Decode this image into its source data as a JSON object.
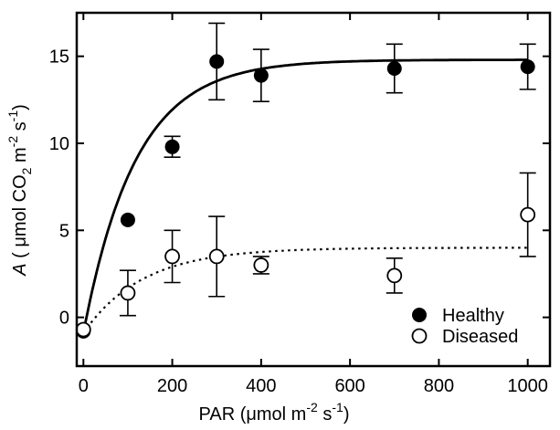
{
  "chart_data": {
    "type": "scatter",
    "xlabel": {
      "base": "PAR (",
      "mu": "μ",
      "mid": "mol m",
      "sup1": "-2",
      "mid2": "  s",
      "sup2": "-1",
      "end": ")"
    },
    "ylabel": {
      "var": "A",
      "open": "  (  ",
      "mu": "μ",
      "unit1": "mol CO",
      "sub": "2",
      "unit2": " m",
      "sup1": "-2",
      "unit3": "  s",
      "sup2": "-1",
      "close": ")"
    },
    "xlim": [
      -15,
      1050
    ],
    "ylim": [
      -2.8,
      17.5
    ],
    "xticks": [
      0,
      200,
      400,
      600,
      800,
      1000
    ],
    "xtick_labels": [
      "0",
      "200",
      "400",
      "600",
      "800",
      "1000"
    ],
    "yticks": [
      0,
      5,
      10,
      15
    ],
    "ytick_labels": [
      "0",
      "5",
      "10",
      "15"
    ],
    "grid": false,
    "legend": "bottom-right",
    "series": [
      {
        "name": "Healthy",
        "marker": "filled-circle",
        "x": [
          0,
          100,
          200,
          300,
          400,
          700,
          1000
        ],
        "y": [
          -0.8,
          5.6,
          9.8,
          14.7,
          13.9,
          14.3,
          14.4
        ],
        "yerr": [
          0,
          0,
          0.6,
          2.2,
          1.5,
          1.4,
          1.3
        ],
        "fit": "solid",
        "fit_params": {
          "amax": 15.7,
          "k": 0.0085,
          "offset": 0.9
        }
      },
      {
        "name": "Diseased",
        "marker": "open-circle",
        "x": [
          0,
          100,
          200,
          300,
          400,
          700,
          1000
        ],
        "y": [
          -0.7,
          1.4,
          3.5,
          3.5,
          3.0,
          2.4,
          5.9
        ],
        "yerr": [
          0,
          1.3,
          1.5,
          2.3,
          0.5,
          1.0,
          2.4
        ],
        "fit": "dotted",
        "fit_params": {
          "amax": 4.9,
          "k": 0.0075,
          "offset": 0.9
        }
      }
    ],
    "colors": {
      "axis": "#000000",
      "marker": "#000000",
      "open_fill": "#ffffff"
    }
  }
}
